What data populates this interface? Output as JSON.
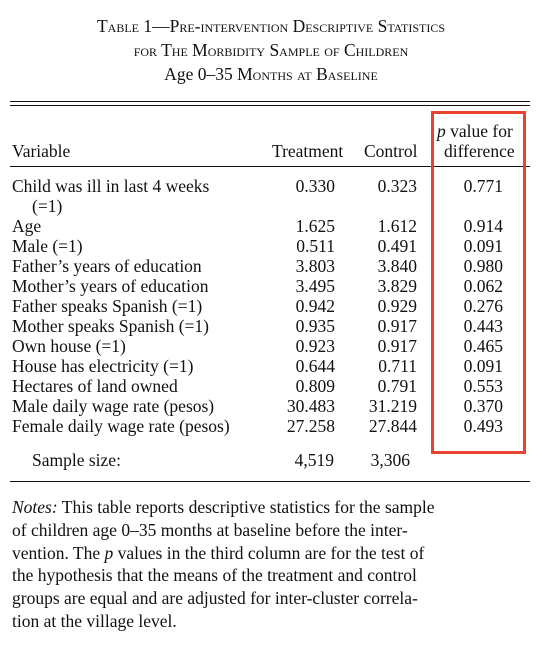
{
  "title": {
    "line1": "Table 1—Pre-intervention Descriptive Statistics",
    "line2": "for The Morbidity Sample of Children",
    "line3_pre": "Age 0–35 ",
    "line3_sc": "Months at Baseline"
  },
  "headers": {
    "variable": "Variable",
    "treatment": "Treatment",
    "control": "Control",
    "p_italic": "p",
    "p_rest": " value for",
    "p_line2": "difference"
  },
  "rows": [
    {
      "var": "Child was ill in last 4 weeks",
      "var2": "(=1)",
      "treatment": "0.330",
      "control": "0.323",
      "p": "0.771"
    },
    {
      "var": "Age",
      "treatment": "1.625",
      "control": "1.612",
      "p": "0.914"
    },
    {
      "var": "Male (=1)",
      "treatment": "0.511",
      "control": "0.491",
      "p": "0.091"
    },
    {
      "var": "Father’s years of education",
      "treatment": "3.803",
      "control": "3.840",
      "p": "0.980"
    },
    {
      "var": "Mother’s years of education",
      "treatment": "3.495",
      "control": "3.829",
      "p": "0.062"
    },
    {
      "var": "Father speaks Spanish (=1)",
      "treatment": "0.942",
      "control": "0.929",
      "p": "0.276"
    },
    {
      "var": "Mother speaks Spanish (=1)",
      "treatment": "0.935",
      "control": "0.917",
      "p": "0.443"
    },
    {
      "var": "Own house (=1)",
      "treatment": "0.923",
      "control": "0.917",
      "p": "0.465"
    },
    {
      "var": "House has electricity (=1)",
      "treatment": "0.644",
      "control": "0.711",
      "p": "0.091"
    },
    {
      "var": "Hectares of land owned",
      "treatment": "0.809",
      "control": "0.791",
      "p": "0.553"
    },
    {
      "var": "Male daily wage rate (pesos)",
      "treatment": "30.483",
      "control": "31.219",
      "p": "0.370"
    },
    {
      "var": "Female daily wage rate (pesos)",
      "treatment": "27.258",
      "control": "27.844",
      "p": "0.493"
    }
  ],
  "sample": {
    "label": "Sample size:",
    "treatment": "4,519",
    "control": "3,306"
  },
  "notes": {
    "label": "Notes:",
    "l1_rest": " This table reports descriptive statistics for the sample",
    "l2": "of children age 0–35 months at baseline before the inter-",
    "l3_a": "vention. The ",
    "l3_p": "p",
    "l3_b": " values in the third column are for the test of",
    "l4": "the hypothesis that the means of the treatment and control",
    "l5": "groups are equal and are adjusted for inter-cluster correla-",
    "l6": "tion at the village level."
  },
  "highlight_color": "#e8432d"
}
